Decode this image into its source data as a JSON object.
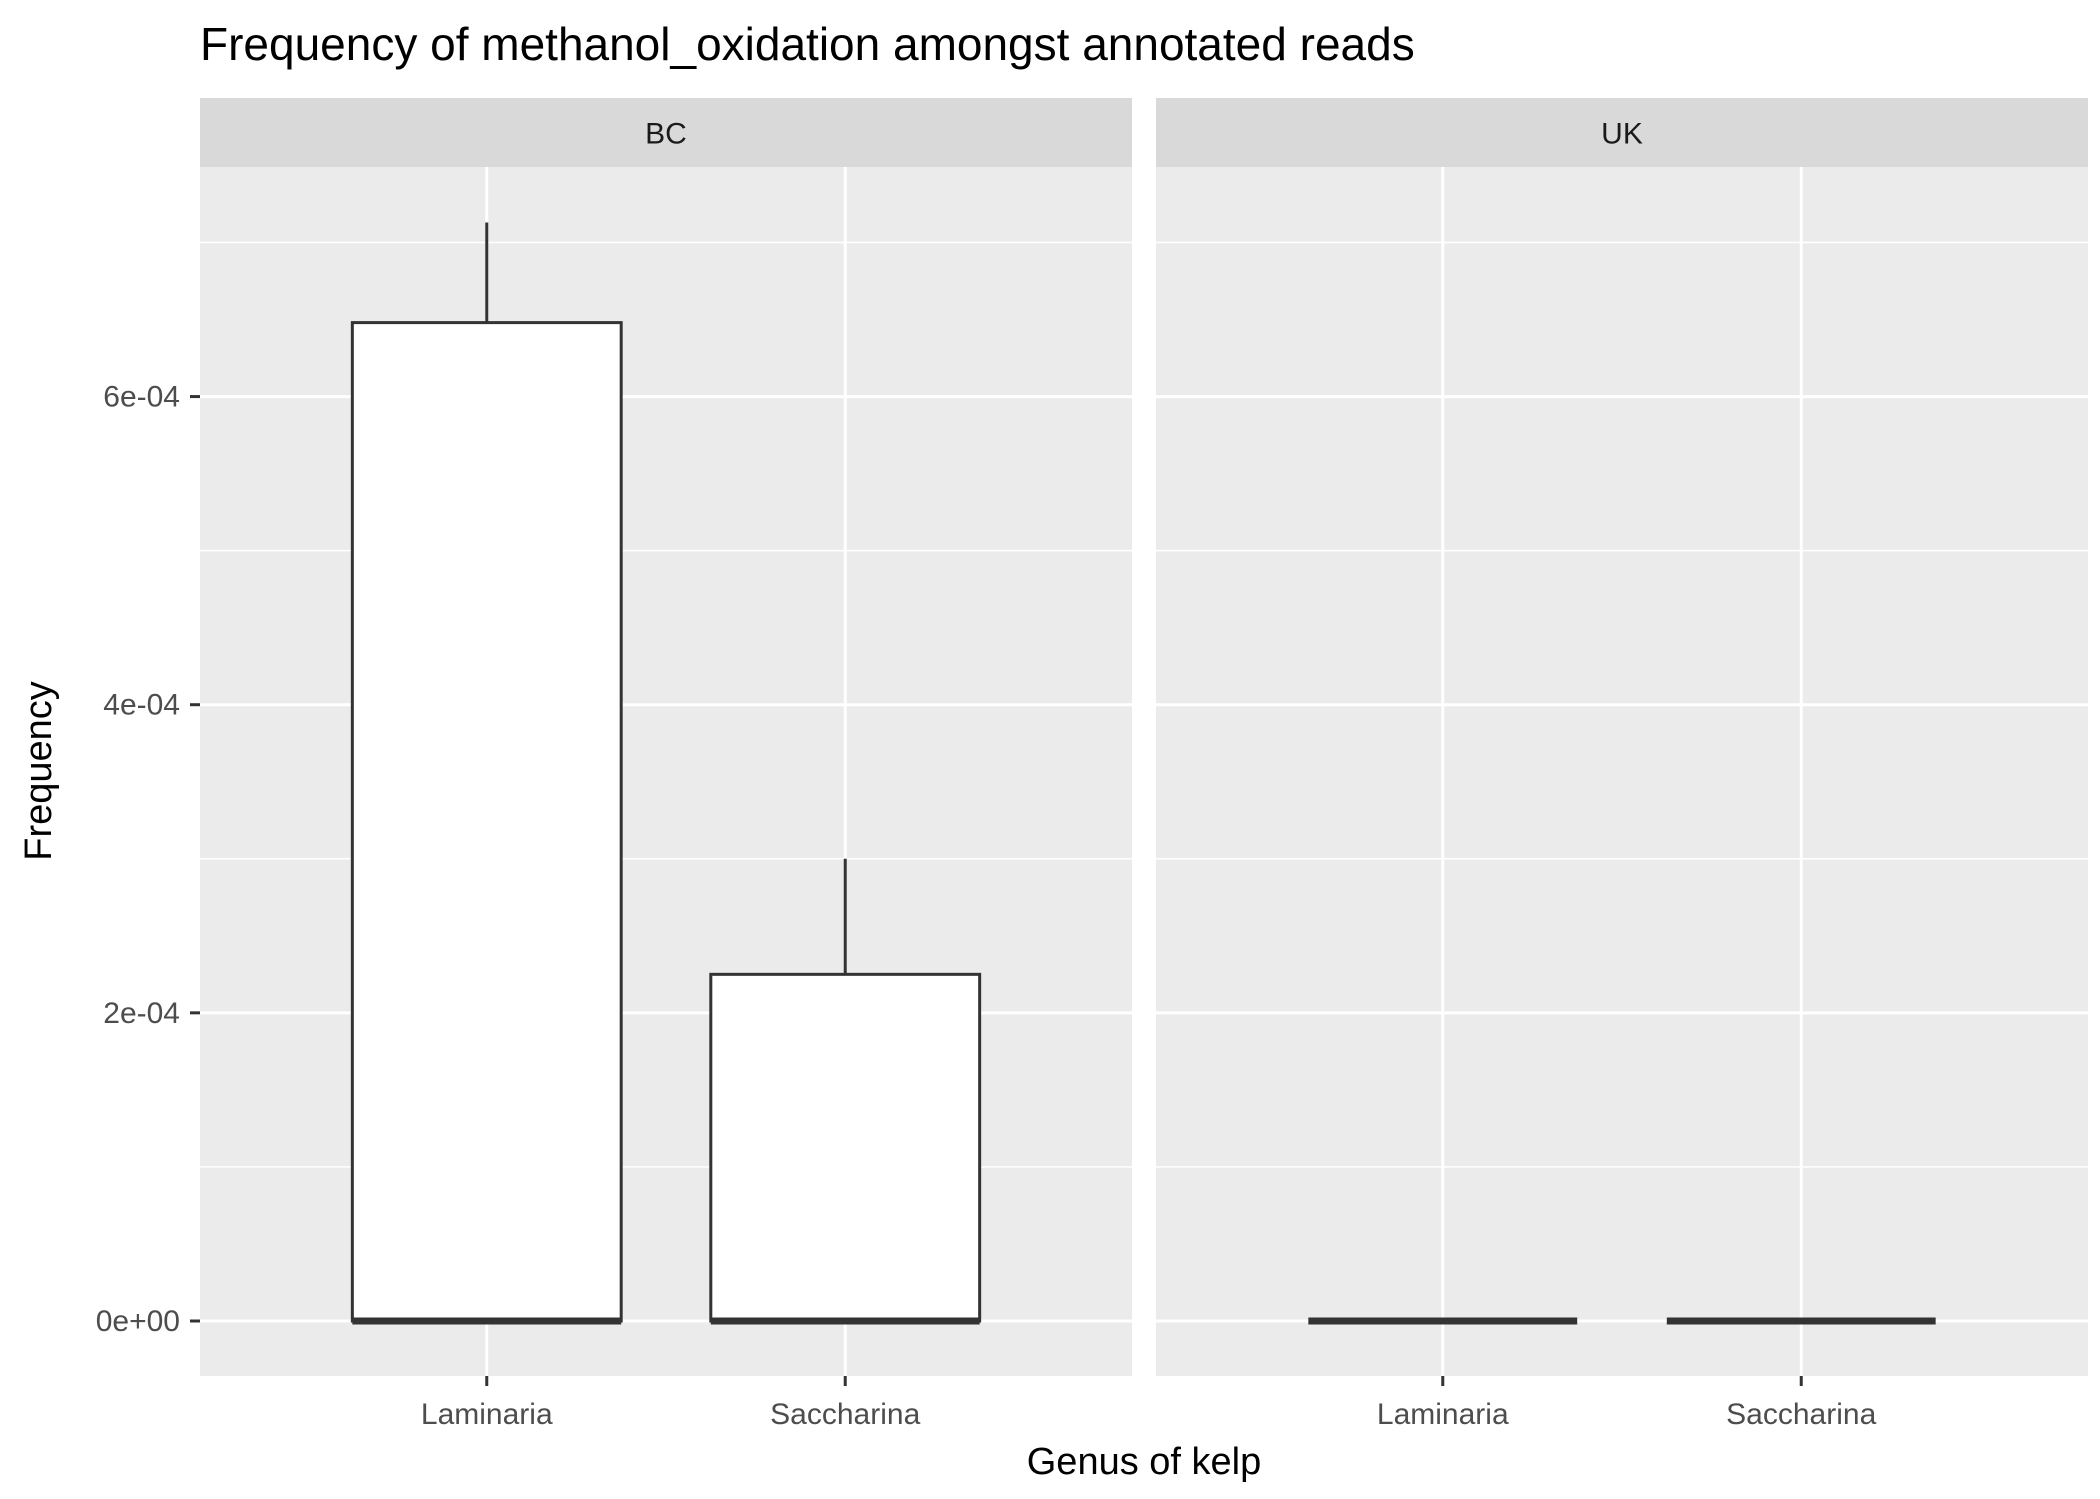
{
  "chart_data": {
    "type": "boxplot",
    "title": "Frequency of methanol_oxidation amongst annotated reads",
    "xlabel": "Genus of kelp",
    "ylabel": "Frequency",
    "categories": [
      "Laminaria",
      "Saccharina"
    ],
    "facets": [
      {
        "label": "BC",
        "boxes": [
          {
            "category": "Laminaria",
            "min": 0,
            "q1": 0,
            "median": 0,
            "q3": 0.000648,
            "max": 0.000713
          },
          {
            "category": "Saccharina",
            "min": 0,
            "q1": 0,
            "median": 0,
            "q3": 0.000225,
            "max": 0.0003
          }
        ]
      },
      {
        "label": "UK",
        "boxes": [
          {
            "category": "Laminaria",
            "min": 0,
            "q1": 0,
            "median": 0,
            "q3": 0,
            "max": 0
          },
          {
            "category": "Saccharina",
            "min": 0,
            "q1": 0,
            "median": 0,
            "q3": 0,
            "max": 0
          }
        ]
      }
    ],
    "yticks": [
      0,
      0.0002,
      0.0004,
      0.0006
    ],
    "ytick_labels": [
      "0e+00",
      "2e-04",
      "4e-04",
      "6e-04"
    ],
    "ylim": [
      -3.57e-05,
      0.000749
    ],
    "grid": true,
    "legend": "none",
    "colors": {
      "panel_background": "#ebebeb",
      "strip_background": "#d9d9d9",
      "grid": "#ffffff",
      "box_fill": "#ffffff",
      "box_line": "#333333",
      "tick_text": "#4d4d4d"
    }
  }
}
